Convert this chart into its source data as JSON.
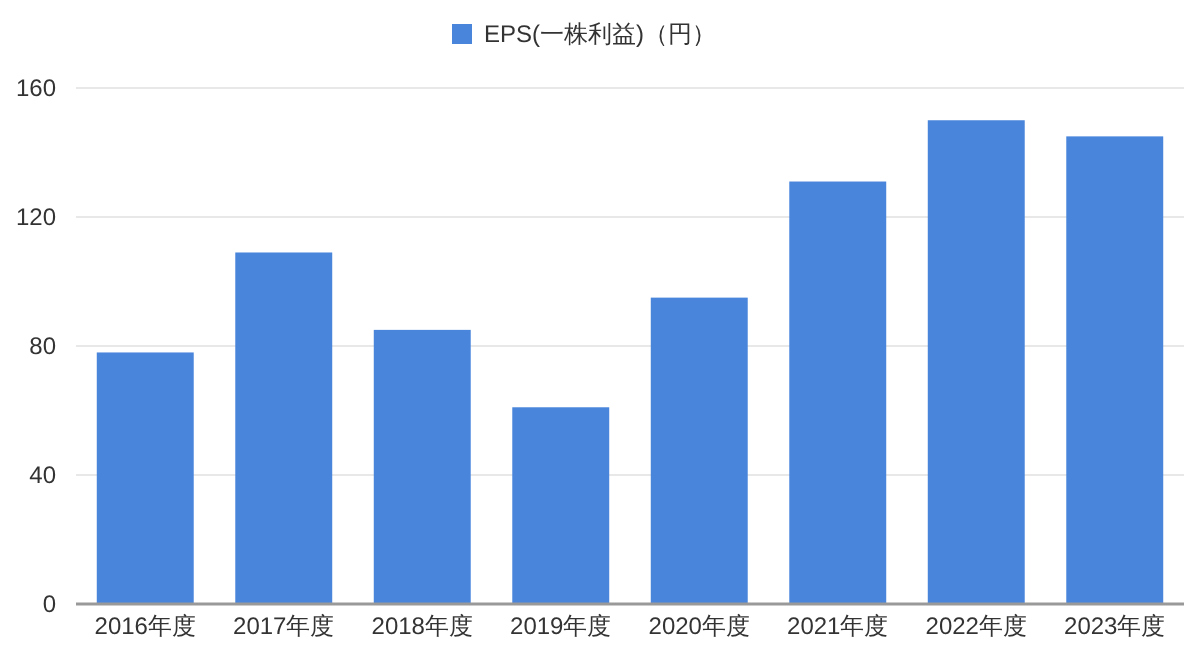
{
  "chart_data": {
    "type": "bar",
    "categories": [
      "2016年度",
      "2017年度",
      "2018年度",
      "2019年度",
      "2020年度",
      "2021年度",
      "2022年度",
      "2023年度"
    ],
    "series": [
      {
        "name": "EPS(一株利益)（円）",
        "color": "#4a85dc",
        "values": [
          78,
          109,
          85,
          61,
          95,
          131,
          150,
          145
        ]
      }
    ],
    "ylim": [
      0,
      160
    ],
    "yticks": [
      0,
      40,
      80,
      120,
      160
    ],
    "grid": "y",
    "legend": "top"
  }
}
